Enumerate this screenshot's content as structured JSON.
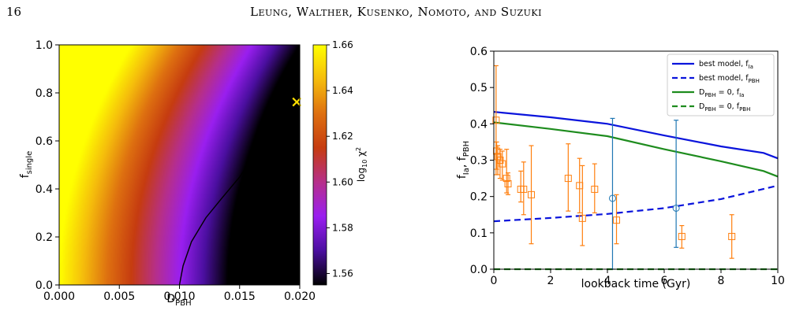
{
  "page": {
    "number": "16",
    "running_head": "Leung, Walther, Kusenko, Nomoto, and Suzuki"
  },
  "chart_data": [
    {
      "type": "heatmap",
      "xlabel": "D_PBH",
      "ylabel": "f_single",
      "xlim": [
        0.0,
        0.02
      ],
      "ylim": [
        0.0,
        1.0
      ],
      "xticks": [
        "0.000",
        "0.005",
        "0.010",
        "0.015",
        "0.020"
      ],
      "yticks": [
        "0.0",
        "0.2",
        "0.4",
        "0.6",
        "0.8",
        "1.0"
      ],
      "colorbar": {
        "label": "log10 χ²",
        "range": [
          1.555,
          1.66
        ],
        "ticks": [
          "1.56",
          "1.58",
          "1.60",
          "1.62",
          "1.64",
          "1.66"
        ],
        "colormap": "gnuplot2",
        "colors": [
          "#000000",
          "#4b0fa0",
          "#9a1ff0",
          "#b62f8a",
          "#c63c10",
          "#de7010",
          "#f5bc0c",
          "#ffff00"
        ]
      },
      "contour": [
        [
          0.01,
          0.0
        ],
        [
          0.0103,
          0.08
        ],
        [
          0.011,
          0.18
        ],
        [
          0.0122,
          0.28
        ],
        [
          0.0135,
          0.36
        ],
        [
          0.015,
          0.45
        ],
        [
          0.0163,
          0.55
        ],
        [
          0.0176,
          0.64
        ],
        [
          0.0189,
          0.72
        ],
        [
          0.02,
          0.76
        ]
      ],
      "best_fit_marker": {
        "x": 0.01975,
        "y": 0.762,
        "color": "#ffe000"
      }
    },
    {
      "type": "line",
      "xlabel": "lookback time (Gyr)",
      "ylabel": "f_Ia, f_PBH",
      "xlim": [
        0,
        10
      ],
      "ylim": [
        0.0,
        0.6
      ],
      "xticks": [
        "0",
        "2",
        "4",
        "6",
        "8",
        "10"
      ],
      "yticks": [
        "0.0",
        "0.1",
        "0.2",
        "0.3",
        "0.4",
        "0.5",
        "0.6"
      ],
      "legend_position": "top-right",
      "series": [
        {
          "name": "best model, f_Ia",
          "color": "#0a14dc",
          "dash": false,
          "x": [
            0,
            2,
            4,
            6,
            8,
            9.5,
            10
          ],
          "y": [
            0.433,
            0.418,
            0.4,
            0.368,
            0.338,
            0.32,
            0.305
          ]
        },
        {
          "name": "best model, f_PBH",
          "color": "#0a14dc",
          "dash": true,
          "x": [
            0,
            2,
            4,
            6,
            8,
            10
          ],
          "y": [
            0.132,
            0.141,
            0.152,
            0.168,
            0.193,
            0.23
          ]
        },
        {
          "name": "D_PBH = 0, f_Ia",
          "color": "#1e8c1e",
          "dash": false,
          "x": [
            0,
            2,
            4,
            6,
            8,
            9.5,
            10
          ],
          "y": [
            0.404,
            0.386,
            0.366,
            0.33,
            0.297,
            0.27,
            0.255
          ]
        },
        {
          "name": "D_PBH = 0, f_PBH",
          "color": "#1e8c1e",
          "dash": true,
          "x": [
            0,
            10
          ],
          "y": [
            0.0,
            0.0
          ]
        }
      ],
      "orange_points": {
        "color": "#ff7f0e",
        "marker": "square",
        "points": [
          {
            "x": 0.08,
            "y": 0.41,
            "lo": 0.26,
            "hi": 0.56
          },
          {
            "x": 0.1,
            "y": 0.325,
            "lo": 0.275,
            "hi": 0.35
          },
          {
            "x": 0.14,
            "y": 0.31,
            "lo": 0.26,
            "hi": 0.34
          },
          {
            "x": 0.22,
            "y": 0.3,
            "lo": 0.25,
            "hi": 0.33
          },
          {
            "x": 0.3,
            "y": 0.29,
            "lo": 0.245,
            "hi": 0.325
          },
          {
            "x": 0.45,
            "y": 0.25,
            "lo": 0.21,
            "hi": 0.33
          },
          {
            "x": 0.5,
            "y": 0.235,
            "lo": 0.205,
            "hi": 0.265
          },
          {
            "x": 0.95,
            "y": 0.22,
            "lo": 0.185,
            "hi": 0.27
          },
          {
            "x": 1.05,
            "y": 0.22,
            "lo": 0.15,
            "hi": 0.295
          },
          {
            "x": 1.32,
            "y": 0.205,
            "lo": 0.07,
            "hi": 0.34
          },
          {
            "x": 2.62,
            "y": 0.25,
            "lo": 0.16,
            "hi": 0.345
          },
          {
            "x": 3.02,
            "y": 0.23,
            "lo": 0.155,
            "hi": 0.305
          },
          {
            "x": 3.12,
            "y": 0.14,
            "lo": 0.065,
            "hi": 0.285
          },
          {
            "x": 3.55,
            "y": 0.22,
            "lo": 0.155,
            "hi": 0.29
          },
          {
            "x": 4.32,
            "y": 0.135,
            "lo": 0.07,
            "hi": 0.205
          },
          {
            "x": 6.62,
            "y": 0.09,
            "lo": 0.058,
            "hi": 0.12
          },
          {
            "x": 8.38,
            "y": 0.09,
            "lo": 0.03,
            "hi": 0.15
          }
        ]
      },
      "blue_points": {
        "color": "#1f77b4",
        "marker": "circle",
        "points": [
          {
            "x": 4.18,
            "y": 0.195,
            "lo": 0.0,
            "hi": 0.415
          },
          {
            "x": 6.42,
            "y": 0.168,
            "lo": 0.06,
            "hi": 0.41
          }
        ]
      }
    }
  ]
}
